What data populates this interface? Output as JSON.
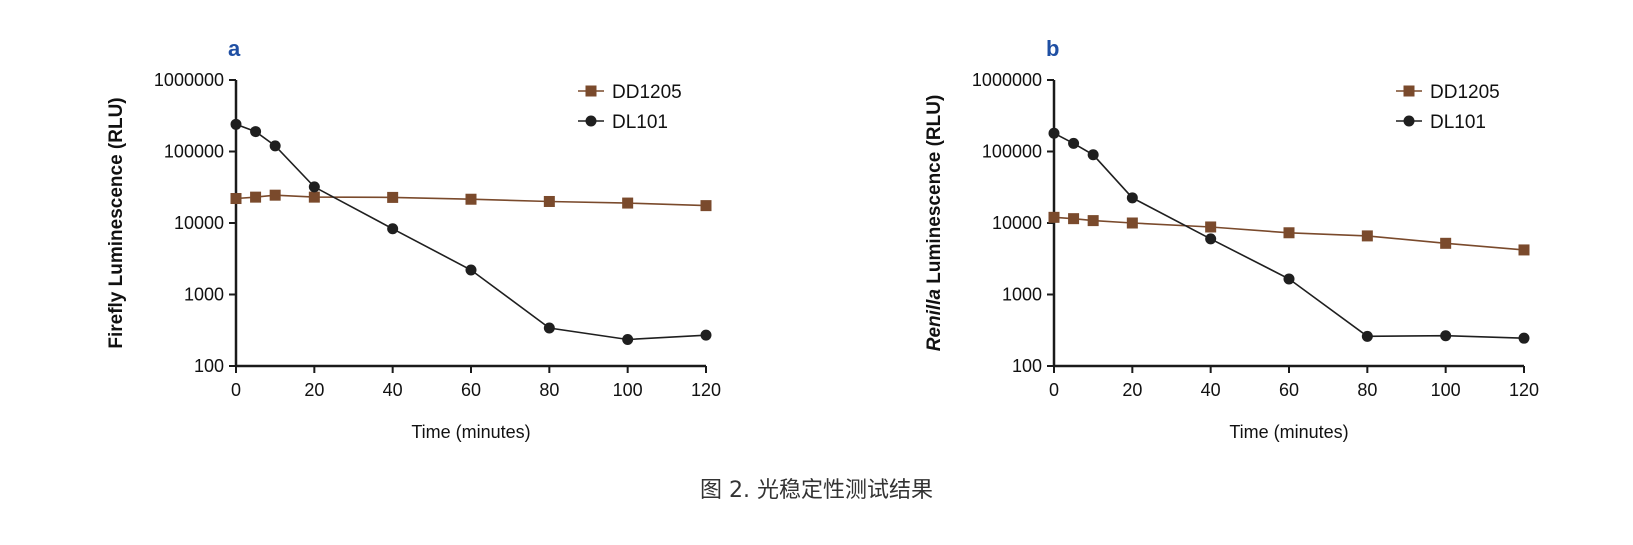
{
  "caption": "图 2. 光稳定性测试结果",
  "colors": {
    "panel_letter": "#1f4fa3",
    "DD1205": "#7a4a2c",
    "DL101": "#1f1f1f",
    "axis": "#1a1a1a"
  },
  "chart_data": [
    {
      "type": "line",
      "panel": "a",
      "ylabel_parts": [
        {
          "text": "Firefly Luminescence (RLU)",
          "italic": false
        }
      ],
      "xlabel": "Time (minutes)",
      "x_scale": "linear",
      "y_scale": "log",
      "xlim": [
        0,
        120
      ],
      "ylim": [
        100,
        1000000
      ],
      "x_ticks": [
        "0",
        "20",
        "40",
        "60",
        "80",
        "100",
        "120"
      ],
      "y_ticks": [
        "100",
        "1000",
        "10000",
        "100000",
        "1000000"
      ],
      "grid": false,
      "legend_position": "top-right",
      "series": [
        {
          "name": "DD1205",
          "marker": "square",
          "x": [
            0,
            5,
            10,
            20,
            40,
            60,
            80,
            100,
            120
          ],
          "y": [
            22000,
            23000,
            24500,
            23000,
            22800,
            21500,
            20000,
            19000,
            17500
          ]
        },
        {
          "name": "DL101",
          "marker": "circle",
          "x": [
            0,
            5,
            10,
            20,
            40,
            60,
            80,
            100,
            120
          ],
          "y": [
            240000,
            190000,
            120000,
            32000,
            8300,
            2200,
            340,
            235,
            270
          ]
        }
      ]
    },
    {
      "type": "line",
      "panel": "b",
      "ylabel_parts": [
        {
          "text": "Renilla",
          "italic": true
        },
        {
          "text": " Luminescence (RLU)",
          "italic": false
        }
      ],
      "xlabel": "Time (minutes)",
      "x_scale": "linear",
      "y_scale": "log",
      "xlim": [
        0,
        120
      ],
      "ylim": [
        100,
        1000000
      ],
      "x_ticks": [
        "0",
        "20",
        "40",
        "60",
        "80",
        "100",
        "120"
      ],
      "y_ticks": [
        "100",
        "1000",
        "10000",
        "100000",
        "1000000"
      ],
      "grid": false,
      "legend_position": "top-right",
      "series": [
        {
          "name": "DD1205",
          "marker": "square",
          "x": [
            0,
            5,
            10,
            20,
            40,
            60,
            80,
            100,
            120
          ],
          "y": [
            12000,
            11500,
            10800,
            10000,
            8800,
            7300,
            6600,
            5200,
            4200
          ]
        },
        {
          "name": "DL101",
          "marker": "circle",
          "x": [
            0,
            5,
            10,
            20,
            40,
            60,
            80,
            100,
            120
          ],
          "y": [
            180000,
            130000,
            90000,
            22500,
            6000,
            1650,
            260,
            265,
            245
          ]
        }
      ]
    }
  ]
}
